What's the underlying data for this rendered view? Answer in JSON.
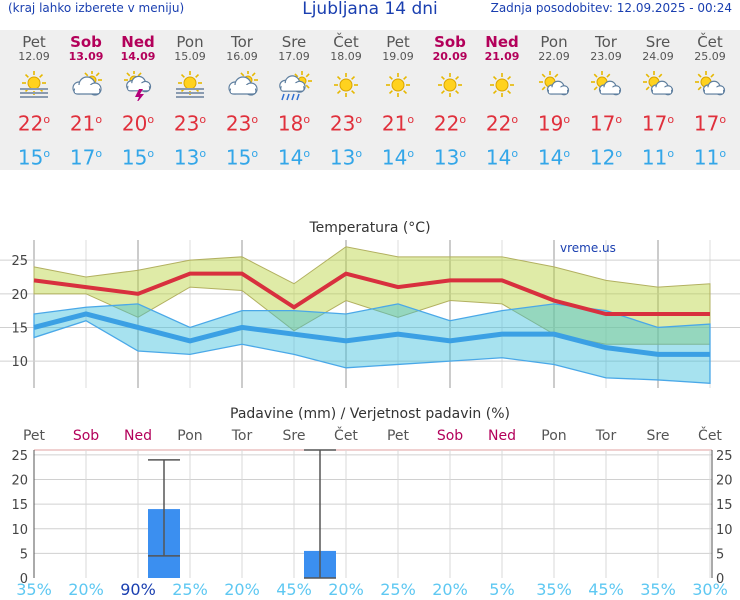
{
  "header": {
    "menu_hint": "(kraj lahko izberete v meniju)",
    "title": "Ljubljana 14 dni",
    "updated": "Zadnja posodobitev: 12.09.2025 - 00:24"
  },
  "colors": {
    "weekday": "#555555",
    "weekend": "#b3005a",
    "tmax": "#e0303c",
    "tmin": "#33a6e8",
    "prob_high": "#1a3fb0",
    "prob_low": "#5ec8f2"
  },
  "days": [
    {
      "name": "Pet",
      "date": "12.09",
      "weekend": false,
      "icon": "fog-sun-icon",
      "tmax": "22",
      "tmin": "15"
    },
    {
      "name": "Sob",
      "date": "13.09",
      "weekend": true,
      "icon": "cloudy-icon",
      "tmax": "21",
      "tmin": "17"
    },
    {
      "name": "Ned",
      "date": "14.09",
      "weekend": true,
      "icon": "thunderstorm-icon",
      "tmax": "20",
      "tmin": "15"
    },
    {
      "name": "Pon",
      "date": "15.09",
      "weekend": false,
      "icon": "fog-sun-icon",
      "tmax": "23",
      "tmin": "13"
    },
    {
      "name": "Tor",
      "date": "16.09",
      "weekend": false,
      "icon": "cloudy-icon",
      "tmax": "23",
      "tmin": "15"
    },
    {
      "name": "Sre",
      "date": "17.09",
      "weekend": false,
      "icon": "rain-sun-icon",
      "tmax": "18",
      "tmin": "14"
    },
    {
      "name": "Čet",
      "date": "18.09",
      "weekend": false,
      "icon": "sun-icon",
      "tmax": "23",
      "tmin": "13"
    },
    {
      "name": "Pet",
      "date": "19.09",
      "weekend": false,
      "icon": "sun-icon",
      "tmax": "21",
      "tmin": "14"
    },
    {
      "name": "Sob",
      "date": "20.09",
      "weekend": true,
      "icon": "sun-icon",
      "tmax": "22",
      "tmin": "13"
    },
    {
      "name": "Ned",
      "date": "21.09",
      "weekend": true,
      "icon": "sun-icon",
      "tmax": "22",
      "tmin": "14"
    },
    {
      "name": "Pon",
      "date": "22.09",
      "weekend": false,
      "icon": "partly-cloudy-icon",
      "tmax": "19",
      "tmin": "14"
    },
    {
      "name": "Tor",
      "date": "23.09",
      "weekend": false,
      "icon": "partly-cloudy-icon",
      "tmax": "17",
      "tmin": "12"
    },
    {
      "name": "Sre",
      "date": "24.09",
      "weekend": false,
      "icon": "partly-cloudy-icon",
      "tmax": "17",
      "tmin": "11"
    },
    {
      "name": "Čet",
      "date": "25.09",
      "weekend": false,
      "icon": "partly-cloudy-icon",
      "tmax": "17",
      "tmin": "11"
    }
  ],
  "chart_data": [
    {
      "type": "line",
      "title": "Temperatura (°C)",
      "watermark": "vreme.us",
      "ylim": [
        6,
        28
      ],
      "yticks": [
        10,
        15,
        20,
        25
      ],
      "grid": true,
      "x": [
        "12.09",
        "13.09",
        "14.09",
        "15.09",
        "16.09",
        "17.09",
        "18.09",
        "19.09",
        "20.09",
        "21.09",
        "22.09",
        "23.09",
        "24.09",
        "25.09"
      ],
      "series": [
        {
          "values": [
            22,
            21,
            20,
            23,
            23,
            18,
            23,
            21,
            22,
            22,
            19,
            17,
            17,
            17
          ],
          "band_high": [
            24,
            22.5,
            23.5,
            25,
            25.5,
            21.5,
            27,
            25.5,
            25.5,
            25.5,
            24,
            22,
            21,
            21.5
          ],
          "band_low": [
            20,
            20,
            16.5,
            21,
            20.5,
            14.5,
            19,
            16.5,
            19,
            18.5,
            14,
            12.5,
            12.5,
            12.5
          ]
        },
        {
          "values": [
            15,
            17,
            15,
            13,
            15,
            14,
            13,
            14,
            13,
            14,
            14,
            12,
            11,
            11
          ],
          "band_high": [
            17,
            18,
            18.5,
            15,
            17.5,
            17.5,
            17,
            18.5,
            16,
            17.5,
            18.5,
            17.5,
            15,
            15.5
          ],
          "band_low": [
            13.5,
            16,
            11.5,
            11,
            12.5,
            11,
            9,
            9.5,
            10,
            10.5,
            9.5,
            7.5,
            7.2,
            6.7
          ]
        }
      ]
    },
    {
      "type": "bar",
      "title": "Padavine (mm) / Verjetnost padavin (%)",
      "ylim": [
        0,
        26
      ],
      "yticks": [
        0,
        5,
        10,
        15,
        20,
        25
      ],
      "grid": true,
      "categories": [
        "Pet",
        "Sob",
        "Ned",
        "Pon",
        "Tor",
        "Sre",
        "Čet",
        "Pet",
        "Sob",
        "Ned",
        "Pon",
        "Tor",
        "Sre",
        "Čet"
      ],
      "weekend": [
        false,
        true,
        true,
        false,
        false,
        false,
        false,
        false,
        true,
        true,
        false,
        false,
        false,
        false
      ],
      "values": [
        0,
        0,
        14,
        0,
        0,
        5.5,
        0,
        0,
        0,
        0,
        0,
        0,
        0,
        0
      ],
      "error_high": [
        null,
        null,
        24,
        null,
        null,
        26,
        null,
        null,
        null,
        null,
        null,
        null,
        null,
        null
      ],
      "error_low": [
        null,
        null,
        4.5,
        null,
        null,
        0,
        null,
        null,
        null,
        null,
        null,
        null,
        null,
        null
      ],
      "probability": [
        "35%",
        "20%",
        "90%",
        "25%",
        "20%",
        "45%",
        "20%",
        "25%",
        "20%",
        "5%",
        "35%",
        "45%",
        "35%",
        "30%"
      ]
    }
  ]
}
